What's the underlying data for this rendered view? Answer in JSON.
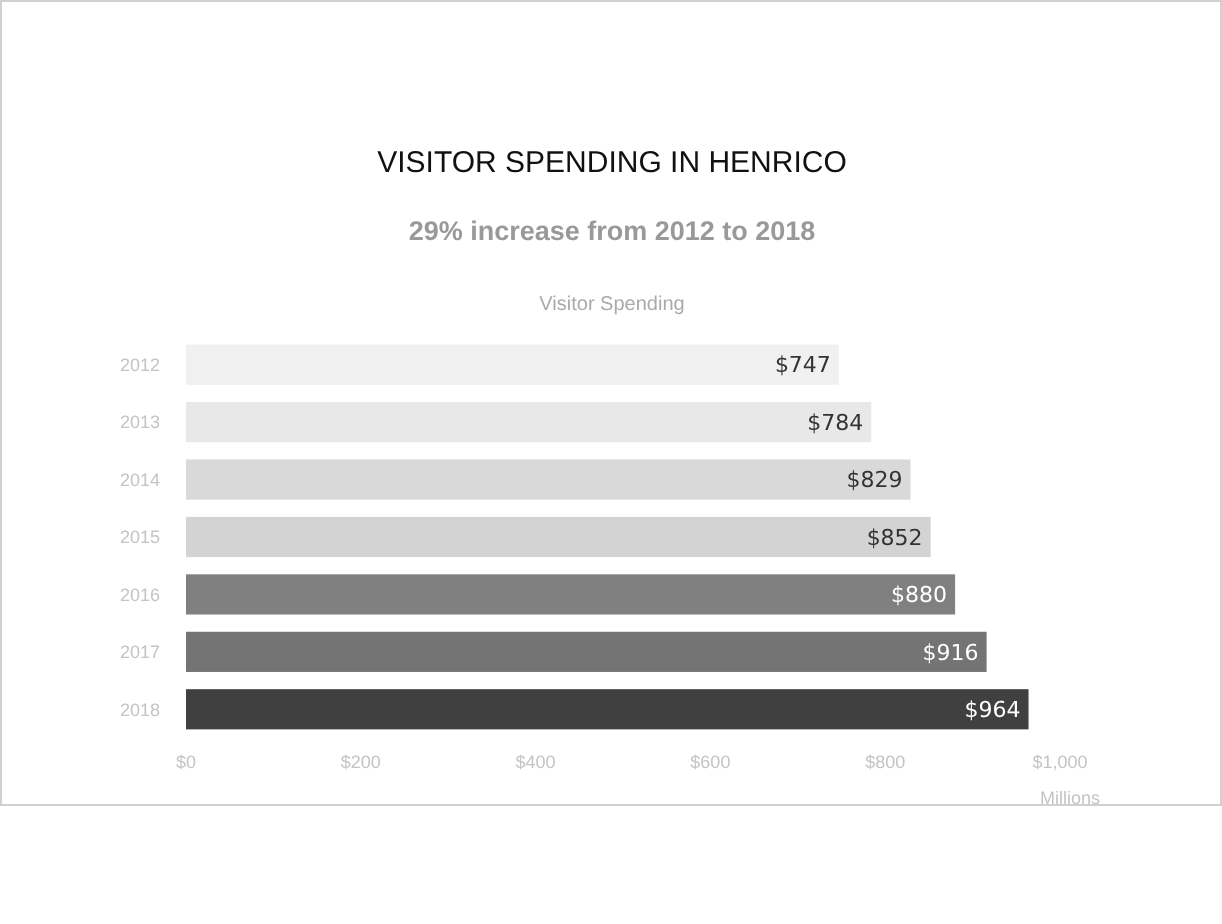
{
  "chart_data": {
    "type": "bar",
    "orientation": "horizontal",
    "title": "VISITOR SPENDING IN HENRICO",
    "subtitle": "29% increase from 2012 to 2018",
    "annotations": [
      "Visitor Spending"
    ],
    "xlabel": "Millions",
    "categories": [
      "2012",
      "2013",
      "2014",
      "2015",
      "2016",
      "2017",
      "2018"
    ],
    "values": [
      747,
      784,
      829,
      852,
      880,
      916,
      964
    ],
    "value_labels": [
      "$747",
      "$784",
      "$829",
      "$852",
      "$880",
      "$916",
      "$964"
    ],
    "colors": [
      "#f0f0f0",
      "#e8e8e8",
      "#d9d9d9",
      "#d3d3d3",
      "#808080",
      "#747474",
      "#404040"
    ],
    "xlim": [
      0,
      1000
    ],
    "xticks": [
      {
        "value": 0,
        "label": "$0"
      },
      {
        "value": 200,
        "label": "$200"
      },
      {
        "value": 400,
        "label": "$400"
      },
      {
        "value": 600,
        "label": "$600"
      },
      {
        "value": 800,
        "label": "$800"
      },
      {
        "value": 1000,
        "label": "$1,000"
      }
    ],
    "grid": false
  }
}
